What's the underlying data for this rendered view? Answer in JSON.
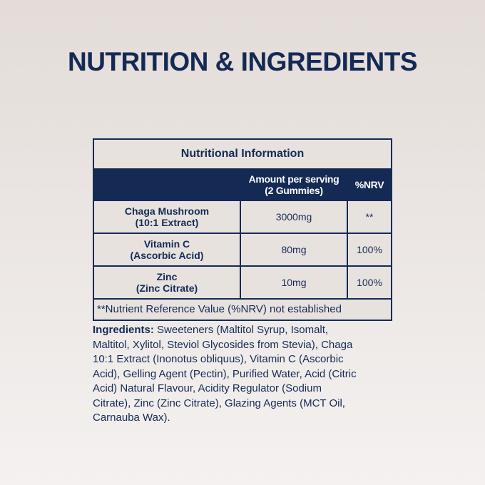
{
  "title": "NUTRITION & INGREDIENTS",
  "table": {
    "caption": "Nutritional Information",
    "headers": [
      "",
      "Amount per serving",
      "(2 Gummies)",
      "%NRV"
    ],
    "rows": [
      {
        "name": "Chaga Mushroom",
        "sub": "(10:1 Extract)",
        "amount": "3000mg",
        "nrv": "**"
      },
      {
        "name": "Vitamin C",
        "sub": "(Ascorbic Acid)",
        "amount": "80mg",
        "nrv": "100%"
      },
      {
        "name": "Zinc",
        "sub": "(Zinc Citrate)",
        "amount": "10mg",
        "nrv": "100%"
      }
    ],
    "footnote": "**Nutrient Reference Value (%NRV) not established"
  },
  "ingredients": {
    "label": "Ingredients:",
    "lines": [
      " Sweeteners (Maltitol Syrup, Isomalt,",
      "Maltitol, Xylitol, Steviol Glycosides from Stevia), Chaga",
      "10:1 Extract (Inonotus obliquus), Vitamin C (Ascorbic",
      "Acid), Gelling Agent (Pectin), Purified Water, Acid (Citric",
      "Acid) Natural Flavour, Acidity Regulator (Sodium",
      "Citrate), Zinc (Zinc Citrate), Glazing Agents (MCT Oil,",
      "Carnauba Wax)."
    ]
  },
  "colors": {
    "navy": "#142a55",
    "background": "#ebe5e2"
  }
}
